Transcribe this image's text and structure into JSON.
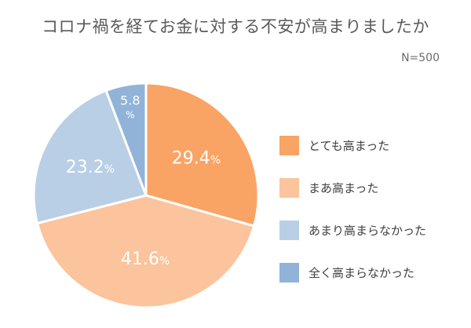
{
  "chart_data": {
    "type": "pie",
    "title": "コロナ禍を経てお金に対する不安が高まりましたか",
    "sample_size": "N=500",
    "start_angle_deg": 0,
    "direction": "clockwise",
    "legend_position": "right",
    "categories": [
      "とても高まった",
      "まあ高まった",
      "あまり高まらなかった",
      "全く高まらなかった"
    ],
    "values": [
      29.4,
      41.6,
      23.2,
      5.8
    ],
    "value_labels": [
      "29.4",
      "41.6",
      "23.2",
      "5.8"
    ],
    "unit": "%",
    "colors": [
      "#f9a465",
      "#fbc49c",
      "#b8cfe6",
      "#91b3d8"
    ]
  }
}
